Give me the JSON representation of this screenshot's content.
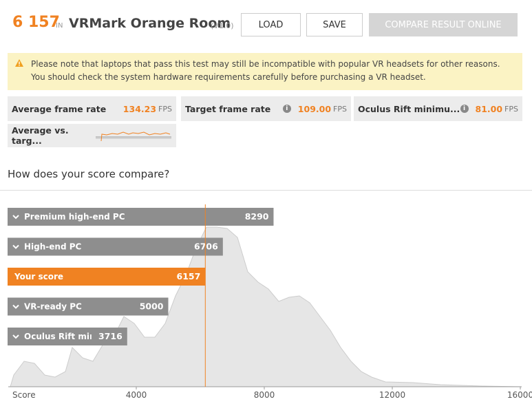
{
  "header": {
    "score": "6 157",
    "in": "IN",
    "title": "VRMark Orange Room",
    "version": "(V1.0)",
    "buttons": [
      "LOAD",
      "SAVE",
      "COMPARE RESULT ONLINE"
    ]
  },
  "warning": "Please note that laptops that pass this test may still be incompatible with popular VR headsets for other reasons. You should check the system hardware requirements carefully before purchasing a VR headset.",
  "metrics": [
    {
      "label": "Average frame rate",
      "value": "134.23",
      "unit": "FPS"
    },
    {
      "label": "Target frame rate",
      "value": "109.00",
      "unit": "FPS"
    },
    {
      "label": "Oculus Rift minimu...",
      "value": "81.00",
      "unit": "FPS"
    }
  ],
  "sparkline_label": "Average vs. targ...",
  "compare_title": "How does your score compare?",
  "chart_data": {
    "type": "bar",
    "orientation": "horizontal",
    "categories": [
      "Premium high-end PC",
      "High-end PC",
      "Your score",
      "VR-ready PC",
      "Oculus Rift minimum PC"
    ],
    "values": [
      8290,
      6706,
      6157,
      5000,
      3716
    ],
    "colors": [
      "#8e8e8e",
      "#8e8e8e",
      "#f08222",
      "#8e8e8e",
      "#8e8e8e"
    ],
    "expandable": [
      true,
      true,
      false,
      true,
      true
    ],
    "x_label": "Score",
    "xlim": [
      0,
      16000
    ],
    "xticks": [
      4000,
      8000,
      12000,
      16000
    ]
  }
}
